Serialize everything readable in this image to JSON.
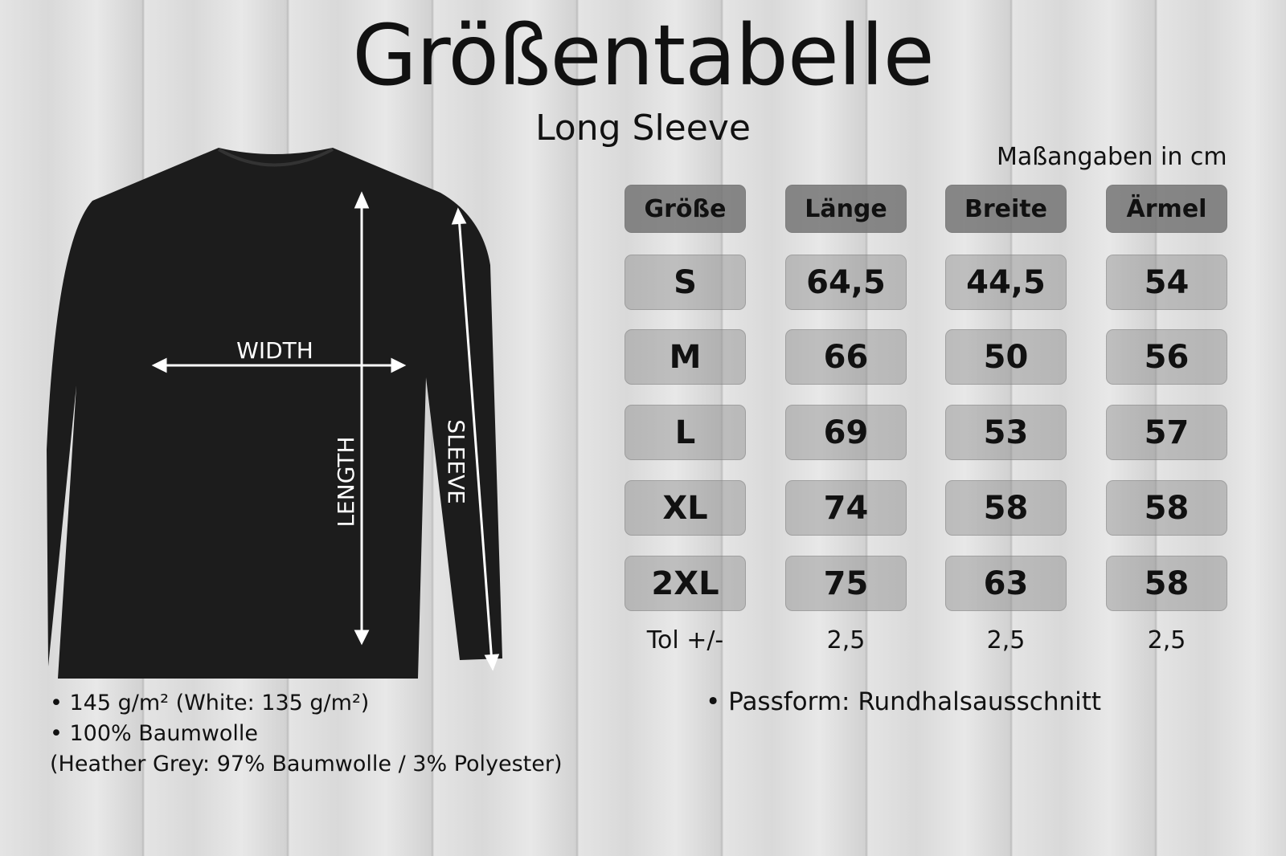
{
  "title": "Größentabelle",
  "subtitle": "Long Sleeve",
  "units_note": "Maßangaben in cm",
  "table": {
    "headers": [
      "Größe",
      "Länge",
      "Breite",
      "Ärmel"
    ],
    "rows": [
      [
        "S",
        "64,5",
        "44,5",
        "54"
      ],
      [
        "M",
        "66",
        "50",
        "56"
      ],
      [
        "L",
        "69",
        "53",
        "57"
      ],
      [
        "XL",
        "74",
        "58",
        "58"
      ],
      [
        "2XL",
        "75",
        "63",
        "58"
      ]
    ],
    "tolerance": [
      "Tol +/-",
      "2,5",
      "2,5",
      "2,5"
    ]
  },
  "diagram": {
    "width": "WIDTH",
    "length": "LENGTH",
    "sleeve": "SLEEVE"
  },
  "notes_left": [
    "• 145 g/m² (White: 135 g/m²)",
    "• 100% Baumwolle",
    "(Heather Grey: 97% Baumwolle / 3% Polyester)"
  ],
  "note_right": "•  Passform: Rundhalsausschnitt"
}
